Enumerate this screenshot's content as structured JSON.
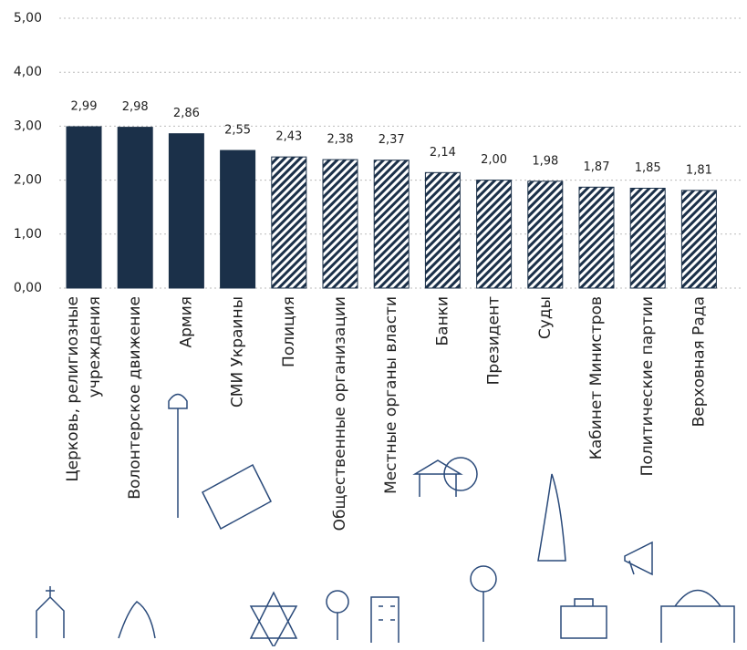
{
  "chart_data": {
    "type": "bar",
    "categories": [
      "Церковь, религиозные\nучреждения",
      "Волонтерское движение",
      "Армия",
      "СМИ Украины",
      "Полиция",
      "Общественные организации",
      "Местные органы власти",
      "Банки",
      "Президент",
      "Суды",
      "Кабинет Министров",
      "Политические партии",
      "Верховная Рада"
    ],
    "values": [
      2.99,
      2.98,
      2.86,
      2.55,
      2.43,
      2.38,
      2.37,
      2.14,
      2.0,
      1.98,
      1.87,
      1.85,
      1.81
    ],
    "value_labels": [
      "2,99",
      "2,98",
      "2,86",
      "2,55",
      "2,43",
      "2,38",
      "2,37",
      "2,14",
      "2,00",
      "1,98",
      "1,87",
      "1,85",
      "1,81"
    ],
    "color": "#1b3049",
    "fills": [
      "solid",
      "solid",
      "solid",
      "solid",
      "hatched",
      "hatched",
      "hatched",
      "hatched",
      "hatched",
      "hatched",
      "hatched",
      "hatched",
      "hatched"
    ],
    "ylim": [
      0,
      5
    ],
    "yticks": [
      {
        "value": 0,
        "label": "0,00"
      },
      {
        "value": 1,
        "label": "1,00"
      },
      {
        "value": 2,
        "label": "2,00"
      },
      {
        "value": 3,
        "label": "3,00"
      },
      {
        "value": 4,
        "label": "4,00"
      },
      {
        "value": 5,
        "label": "5,00"
      }
    ],
    "grid": true
  }
}
